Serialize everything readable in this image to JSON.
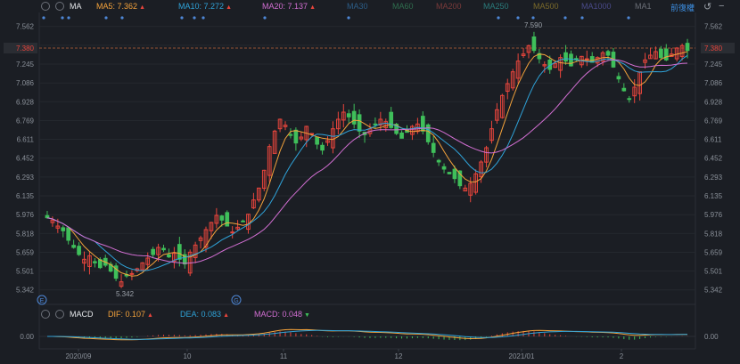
{
  "toolbar": {
    "ma_label": "MA",
    "ma5": {
      "label": "MA5:",
      "value": "7.362",
      "color": "#f5a33b"
    },
    "ma10": {
      "label": "MA10:",
      "value": "7.272",
      "color": "#2fa3d9"
    },
    "ma20": {
      "label": "MA20:",
      "value": "7.137",
      "color": "#d36fd3"
    },
    "ma30": {
      "label": "MA30",
      "color": "#2c5d87"
    },
    "ma60": {
      "label": "MA60",
      "color": "#2f6e4e"
    },
    "ma200": {
      "label": "MA200",
      "color": "#7a3a3a"
    },
    "ma250": {
      "label": "MA250",
      "color": "#2a7b7b"
    },
    "ma500": {
      "label": "MA500",
      "color": "#7a6a2a"
    },
    "ma1000": {
      "label": "MA1000",
      "color": "#4a4a8a"
    },
    "ma_more": {
      "label": "MA1",
      "color": "#6b6f77"
    },
    "right_link": "前復權"
  },
  "macd_bar": {
    "label": "MACD",
    "dif": {
      "label": "DIF:",
      "value": "0.107",
      "color": "#f5a33b"
    },
    "dea": {
      "label": "DEA:",
      "value": "0.083",
      "color": "#2fa3d9"
    },
    "macd": {
      "label": "MACD:",
      "value": "0.048",
      "color": "#d36fd3"
    }
  },
  "markers": {
    "e_badge": "E",
    "g_badge": "G"
  },
  "price_axis": {
    "ticks": [
      "7.562",
      "7.403",
      "7.245",
      "7.086",
      "6.928",
      "6.769",
      "6.611",
      "6.452",
      "6.293",
      "6.135",
      "5.976",
      "5.818",
      "5.659",
      "5.501",
      "5.342"
    ],
    "current_price": "7.380"
  },
  "macd_axis": {
    "zero_label": "0.00"
  },
  "x_axis": {
    "labels": [
      "2020/09",
      "10",
      "11",
      "12",
      "2021/01",
      "2"
    ]
  },
  "annotations": {
    "high_label": "7.590",
    "low_label": "5.342"
  },
  "colors": {
    "up": "#e8453c",
    "down": "#3fbf5a",
    "ma5": "#f5a33b",
    "ma10": "#2fa3d9",
    "ma20": "#d36fd3"
  },
  "chart_data": {
    "type": "candlestick",
    "ylim": [
      5.28,
      7.62
    ],
    "closes": [
      5.95,
      5.93,
      5.88,
      5.84,
      5.76,
      5.7,
      5.64,
      5.6,
      5.63,
      5.57,
      5.53,
      5.55,
      5.5,
      5.44,
      5.41,
      5.46,
      5.48,
      5.52,
      5.57,
      5.61,
      5.64,
      5.7,
      5.68,
      5.62,
      5.65,
      5.6,
      5.56,
      5.66,
      5.72,
      5.78,
      5.85,
      5.91,
      5.97,
      5.93,
      5.88,
      5.83,
      5.87,
      5.92,
      5.98,
      6.1,
      6.2,
      6.35,
      6.55,
      6.68,
      6.78,
      6.73,
      6.65,
      6.58,
      6.63,
      6.72,
      6.66,
      6.57,
      6.52,
      6.6,
      6.7,
      6.78,
      6.84,
      6.8,
      6.74,
      6.68,
      6.65,
      6.7,
      6.74,
      6.78,
      6.76,
      6.71,
      6.66,
      6.62,
      6.67,
      6.72,
      6.74,
      6.68,
      6.59,
      6.5,
      6.42,
      6.36,
      6.32,
      6.28,
      6.22,
      6.2,
      6.24,
      6.32,
      6.42,
      6.54,
      6.7,
      6.86,
      6.98,
      7.08,
      7.18,
      7.27,
      7.33,
      7.4,
      7.36,
      7.29,
      7.24,
      7.2,
      7.25,
      7.3,
      7.27,
      7.23,
      7.28,
      7.31,
      7.29,
      7.26,
      7.3,
      7.34,
      7.32,
      7.22,
      7.12,
      7.02,
      6.95,
      7.05,
      7.18,
      7.28,
      7.32,
      7.35,
      7.3,
      7.28,
      7.33,
      7.38,
      7.4,
      7.36
    ],
    "macd_hist_approx": "oscillates near 0.00 with small red and green bars",
    "high": 7.59,
    "low": 5.342,
    "x_labels": [
      "2020/09",
      "10",
      "11",
      "12",
      "2021/01",
      "2"
    ]
  }
}
